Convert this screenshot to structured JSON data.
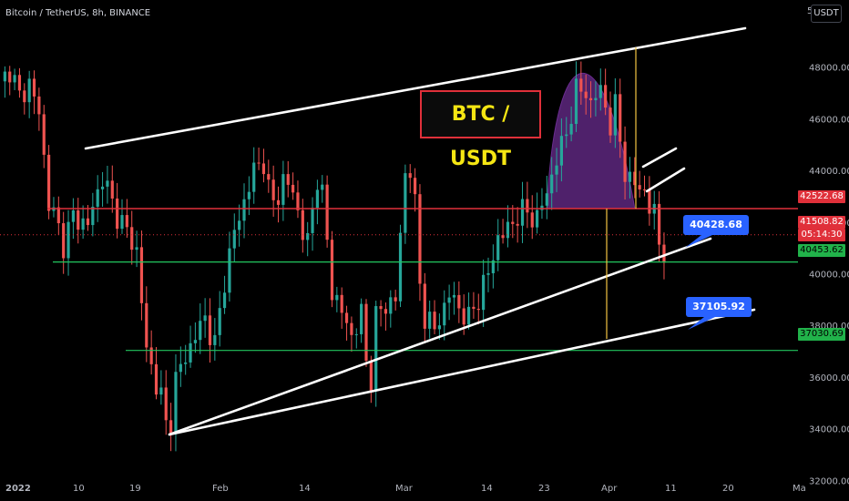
{
  "header": {
    "symbol": "Bitcoin / TetherUS, 8h, BINANCE",
    "currency": "USDT",
    "top_tick": "5"
  },
  "title_box": "BTC / USDT",
  "colors": {
    "up": "#26a69a",
    "down": "#ef5350",
    "resistance": "#e0303a",
    "support": "#22c55e",
    "trend": "#ffffff",
    "marker": "#f4c542",
    "fill": "#6a2c8f",
    "callout": "#2962ff"
  },
  "chart_data": {
    "type": "candlestick",
    "ylim": [
      31200,
      50600
    ],
    "y_ticks": [
      "32000.00",
      "34000.00",
      "36000.00",
      "38000.00",
      "40000.00",
      "42000.00",
      "44000.00",
      "46000.00",
      "48000.00"
    ],
    "x_ticks": [
      "2022",
      "10",
      "19",
      "Feb",
      "14",
      "Mar",
      "14",
      "23",
      "Apr",
      "11",
      "20",
      "Ma"
    ],
    "price_closes": [
      [
        0,
        47200
      ],
      [
        2,
        48000
      ],
      [
        4,
        46800
      ],
      [
        6,
        47400
      ],
      [
        8,
        46200
      ],
      [
        10,
        42800
      ],
      [
        13,
        41200
      ],
      [
        15,
        42200
      ],
      [
        18,
        41900
      ],
      [
        21,
        43800
      ],
      [
        23,
        42700
      ],
      [
        26,
        41600
      ],
      [
        28,
        40900
      ],
      [
        30,
        37000
      ],
      [
        33,
        35200
      ],
      [
        34.5,
        33600
      ],
      [
        36,
        35900
      ],
      [
        38,
        36800
      ],
      [
        40,
        37600
      ],
      [
        42,
        38300
      ],
      [
        44,
        37200
      ],
      [
        46,
        39800
      ],
      [
        48,
        41600
      ],
      [
        50,
        42800
      ],
      [
        52,
        44000
      ],
      [
        54,
        44400
      ],
      [
        55,
        43200
      ],
      [
        56,
        42700
      ],
      [
        58,
        43600
      ],
      [
        60,
        43200
      ],
      [
        62,
        41600
      ],
      [
        63,
        41200
      ],
      [
        65,
        43800
      ],
      [
        66,
        43000
      ],
      [
        68,
        39400
      ],
      [
        70,
        38500
      ],
      [
        72,
        37600
      ],
      [
        74,
        38400
      ],
      [
        75,
        36600
      ],
      [
        76,
        36000
      ],
      [
        77,
        38300
      ],
      [
        79,
        38800
      ],
      [
        81,
        39000
      ],
      [
        83,
        43900
      ],
      [
        84,
        44100
      ],
      [
        85,
        42600
      ],
      [
        86,
        39600
      ],
      [
        87,
        38400
      ],
      [
        89,
        37800
      ],
      [
        92,
        39200
      ],
      [
        94,
        38700
      ],
      [
        96,
        38200
      ],
      [
        98,
        39100
      ],
      [
        100,
        40000
      ],
      [
        102,
        41400
      ],
      [
        104,
        41700
      ],
      [
        106,
        42300
      ],
      [
        108,
        42400
      ],
      [
        110,
        42100
      ],
      [
        112,
        43200
      ],
      [
        114,
        44400
      ],
      [
        116,
        45500
      ],
      [
        118,
        47000
      ],
      [
        120,
        47200
      ],
      [
        121,
        46400
      ],
      [
        123,
        47300
      ],
      [
        125,
        45600
      ],
      [
        126,
        46500
      ],
      [
        128,
        44000
      ],
      [
        129,
        43400
      ],
      [
        131,
        43600
      ],
      [
        133,
        42400
      ],
      [
        134,
        42600
      ],
      [
        135,
        41200
      ],
      [
        136,
        40700
      ]
    ],
    "levels": [
      {
        "label": "42522.68",
        "value": 42522.68,
        "color": "#e0303a"
      },
      {
        "label": "40453.62",
        "value": 40453.62,
        "color": "#22c55e"
      },
      {
        "label": "37030.69",
        "value": 37030.69,
        "color": "#22c55e"
      }
    ],
    "price_tags": [
      {
        "label": "41508.82",
        "value": 41508.82,
        "color": "#e0303a"
      },
      {
        "label": "05:14:30",
        "color": "#e0303a"
      }
    ],
    "callouts": [
      "40428.68",
      "37105.92"
    ]
  }
}
